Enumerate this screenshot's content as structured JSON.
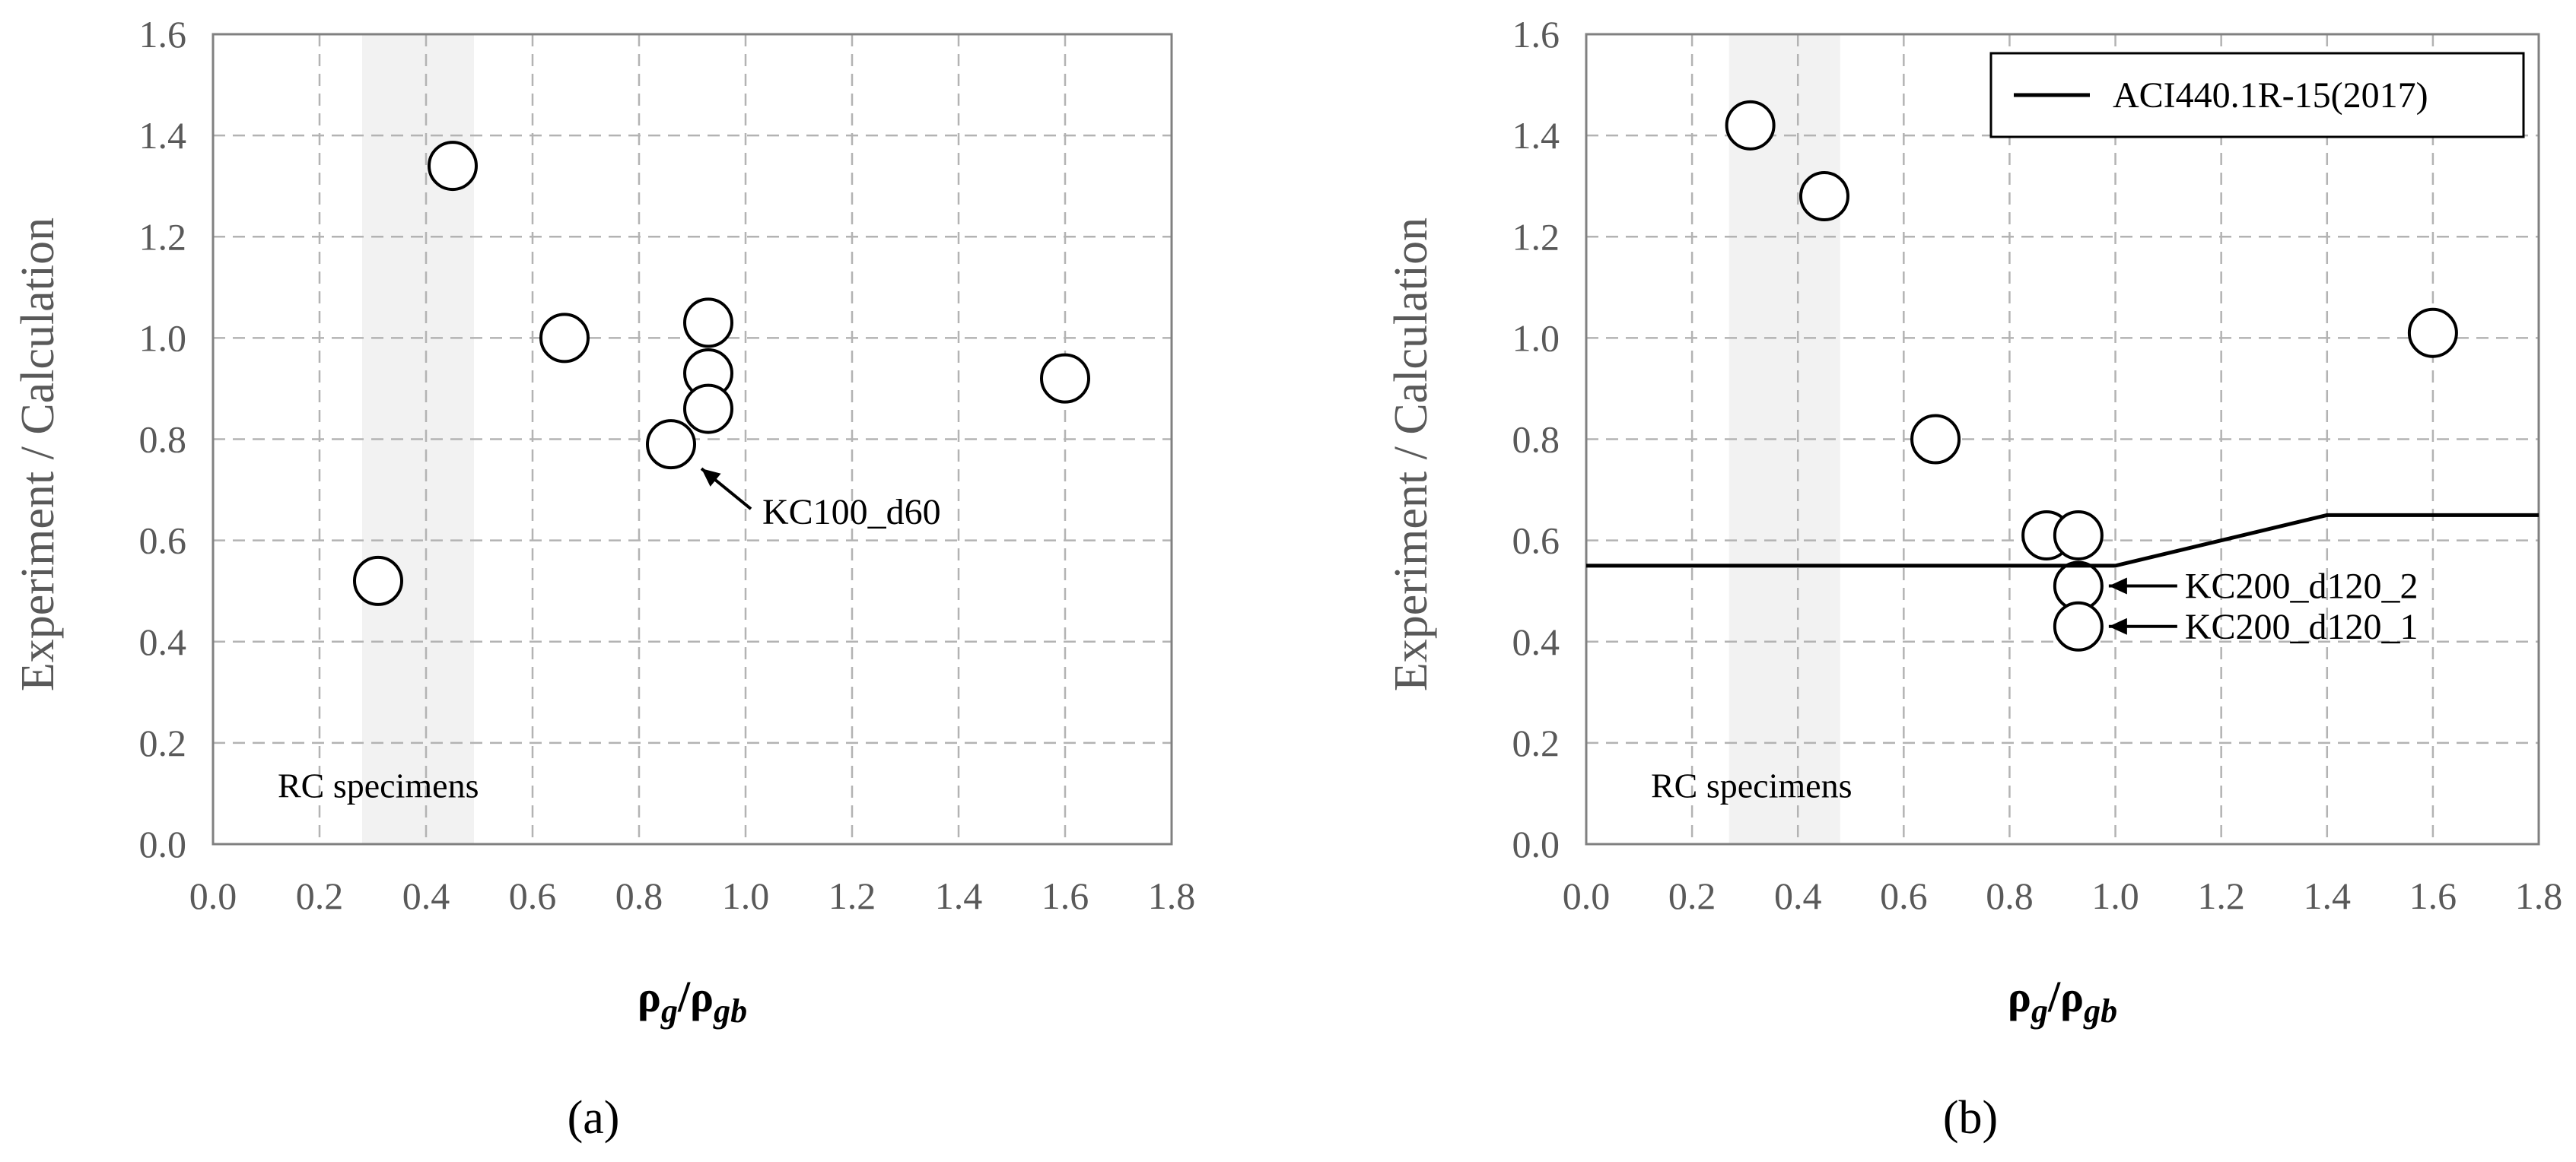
{
  "chart_data": [
    {
      "type": "scatter",
      "panel_label": "(a)",
      "xlabel": "ρg/ρgb",
      "ylabel": "Experiment / Calculation",
      "xlim": [
        0.0,
        1.8
      ],
      "ylim": [
        0.0,
        1.6
      ],
      "xticks": [
        "0.0",
        "0.2",
        "0.4",
        "0.6",
        "0.8",
        "1.0",
        "1.2",
        "1.4",
        "1.6",
        "1.8"
      ],
      "yticks": [
        "0.0",
        "0.2",
        "0.4",
        "0.6",
        "0.8",
        "1.0",
        "1.2",
        "1.4",
        "1.6"
      ],
      "grid": true,
      "shaded_region": {
        "x": [
          0.28,
          0.49
        ],
        "label": "RC specimens"
      },
      "series": [
        {
          "marker": "open-circle",
          "points": [
            {
              "x": 0.31,
              "y": 0.52
            },
            {
              "x": 0.45,
              "y": 1.34
            },
            {
              "x": 0.66,
              "y": 1.0
            },
            {
              "x": 0.86,
              "y": 0.79
            },
            {
              "x": 0.93,
              "y": 1.03
            },
            {
              "x": 0.93,
              "y": 0.93
            },
            {
              "x": 0.93,
              "y": 0.86
            },
            {
              "x": 1.6,
              "y": 0.92
            }
          ]
        }
      ],
      "annotations": [
        {
          "text": "KC100_d60",
          "point": {
            "x": 0.86,
            "y": 0.79
          }
        }
      ]
    },
    {
      "type": "scatter",
      "panel_label": "(b)",
      "xlabel": "ρg/ρgb",
      "ylabel": "Experiment / Calculation",
      "xlim": [
        0.0,
        1.8
      ],
      "ylim": [
        0.0,
        1.6
      ],
      "xticks": [
        "0.0",
        "0.2",
        "0.4",
        "0.6",
        "0.8",
        "1.0",
        "1.2",
        "1.4",
        "1.6",
        "1.8"
      ],
      "yticks": [
        "0.0",
        "0.2",
        "0.4",
        "0.6",
        "0.8",
        "1.0",
        "1.2",
        "1.4",
        "1.6"
      ],
      "grid": true,
      "legend_position": "top-right",
      "shaded_region": {
        "x": [
          0.27,
          0.48
        ],
        "label": "RC specimens"
      },
      "series": [
        {
          "marker": "open-circle",
          "points": [
            {
              "x": 0.31,
              "y": 1.42
            },
            {
              "x": 0.45,
              "y": 1.28
            },
            {
              "x": 0.66,
              "y": 0.8
            },
            {
              "x": 0.87,
              "y": 0.61
            },
            {
              "x": 0.93,
              "y": 0.61
            },
            {
              "x": 0.93,
              "y": 0.51
            },
            {
              "x": 0.93,
              "y": 0.43
            },
            {
              "x": 1.6,
              "y": 1.01
            }
          ]
        },
        {
          "name": "ACI440.1R-15(2017)",
          "kind": "line",
          "color": "#000000",
          "points": [
            {
              "x": 0.0,
              "y": 0.55
            },
            {
              "x": 1.0,
              "y": 0.55
            },
            {
              "x": 1.4,
              "y": 0.65
            },
            {
              "x": 1.8,
              "y": 0.65
            }
          ]
        }
      ],
      "annotations": [
        {
          "text": "KC200_d120_2",
          "point": {
            "x": 0.93,
            "y": 0.51
          }
        },
        {
          "text": "KC200_d120_1",
          "point": {
            "x": 0.93,
            "y": 0.43
          }
        }
      ]
    }
  ]
}
